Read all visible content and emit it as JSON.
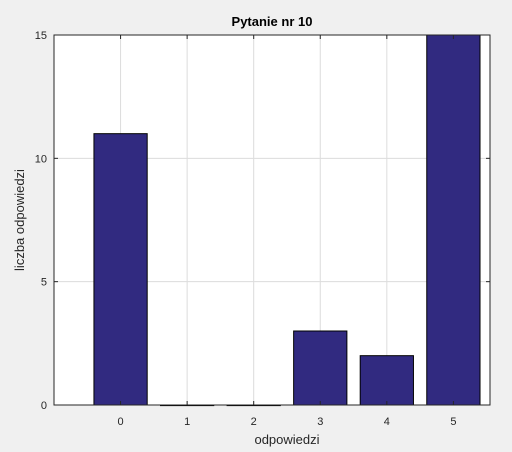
{
  "chart_data": {
    "type": "bar",
    "title": "Pytanie nr 10",
    "xlabel": "odpowiedzi",
    "ylabel": "liczba odpowiedzi",
    "categories": [
      "0",
      "1",
      "2",
      "3",
      "4",
      "5"
    ],
    "values": [
      11,
      0,
      0,
      3,
      2,
      15
    ],
    "ylim": [
      0,
      15
    ],
    "yticks": [
      "0",
      "5",
      "10",
      "15"
    ],
    "grid": true,
    "bar_color": "#312a80",
    "bar_edge_color": "#000000"
  }
}
